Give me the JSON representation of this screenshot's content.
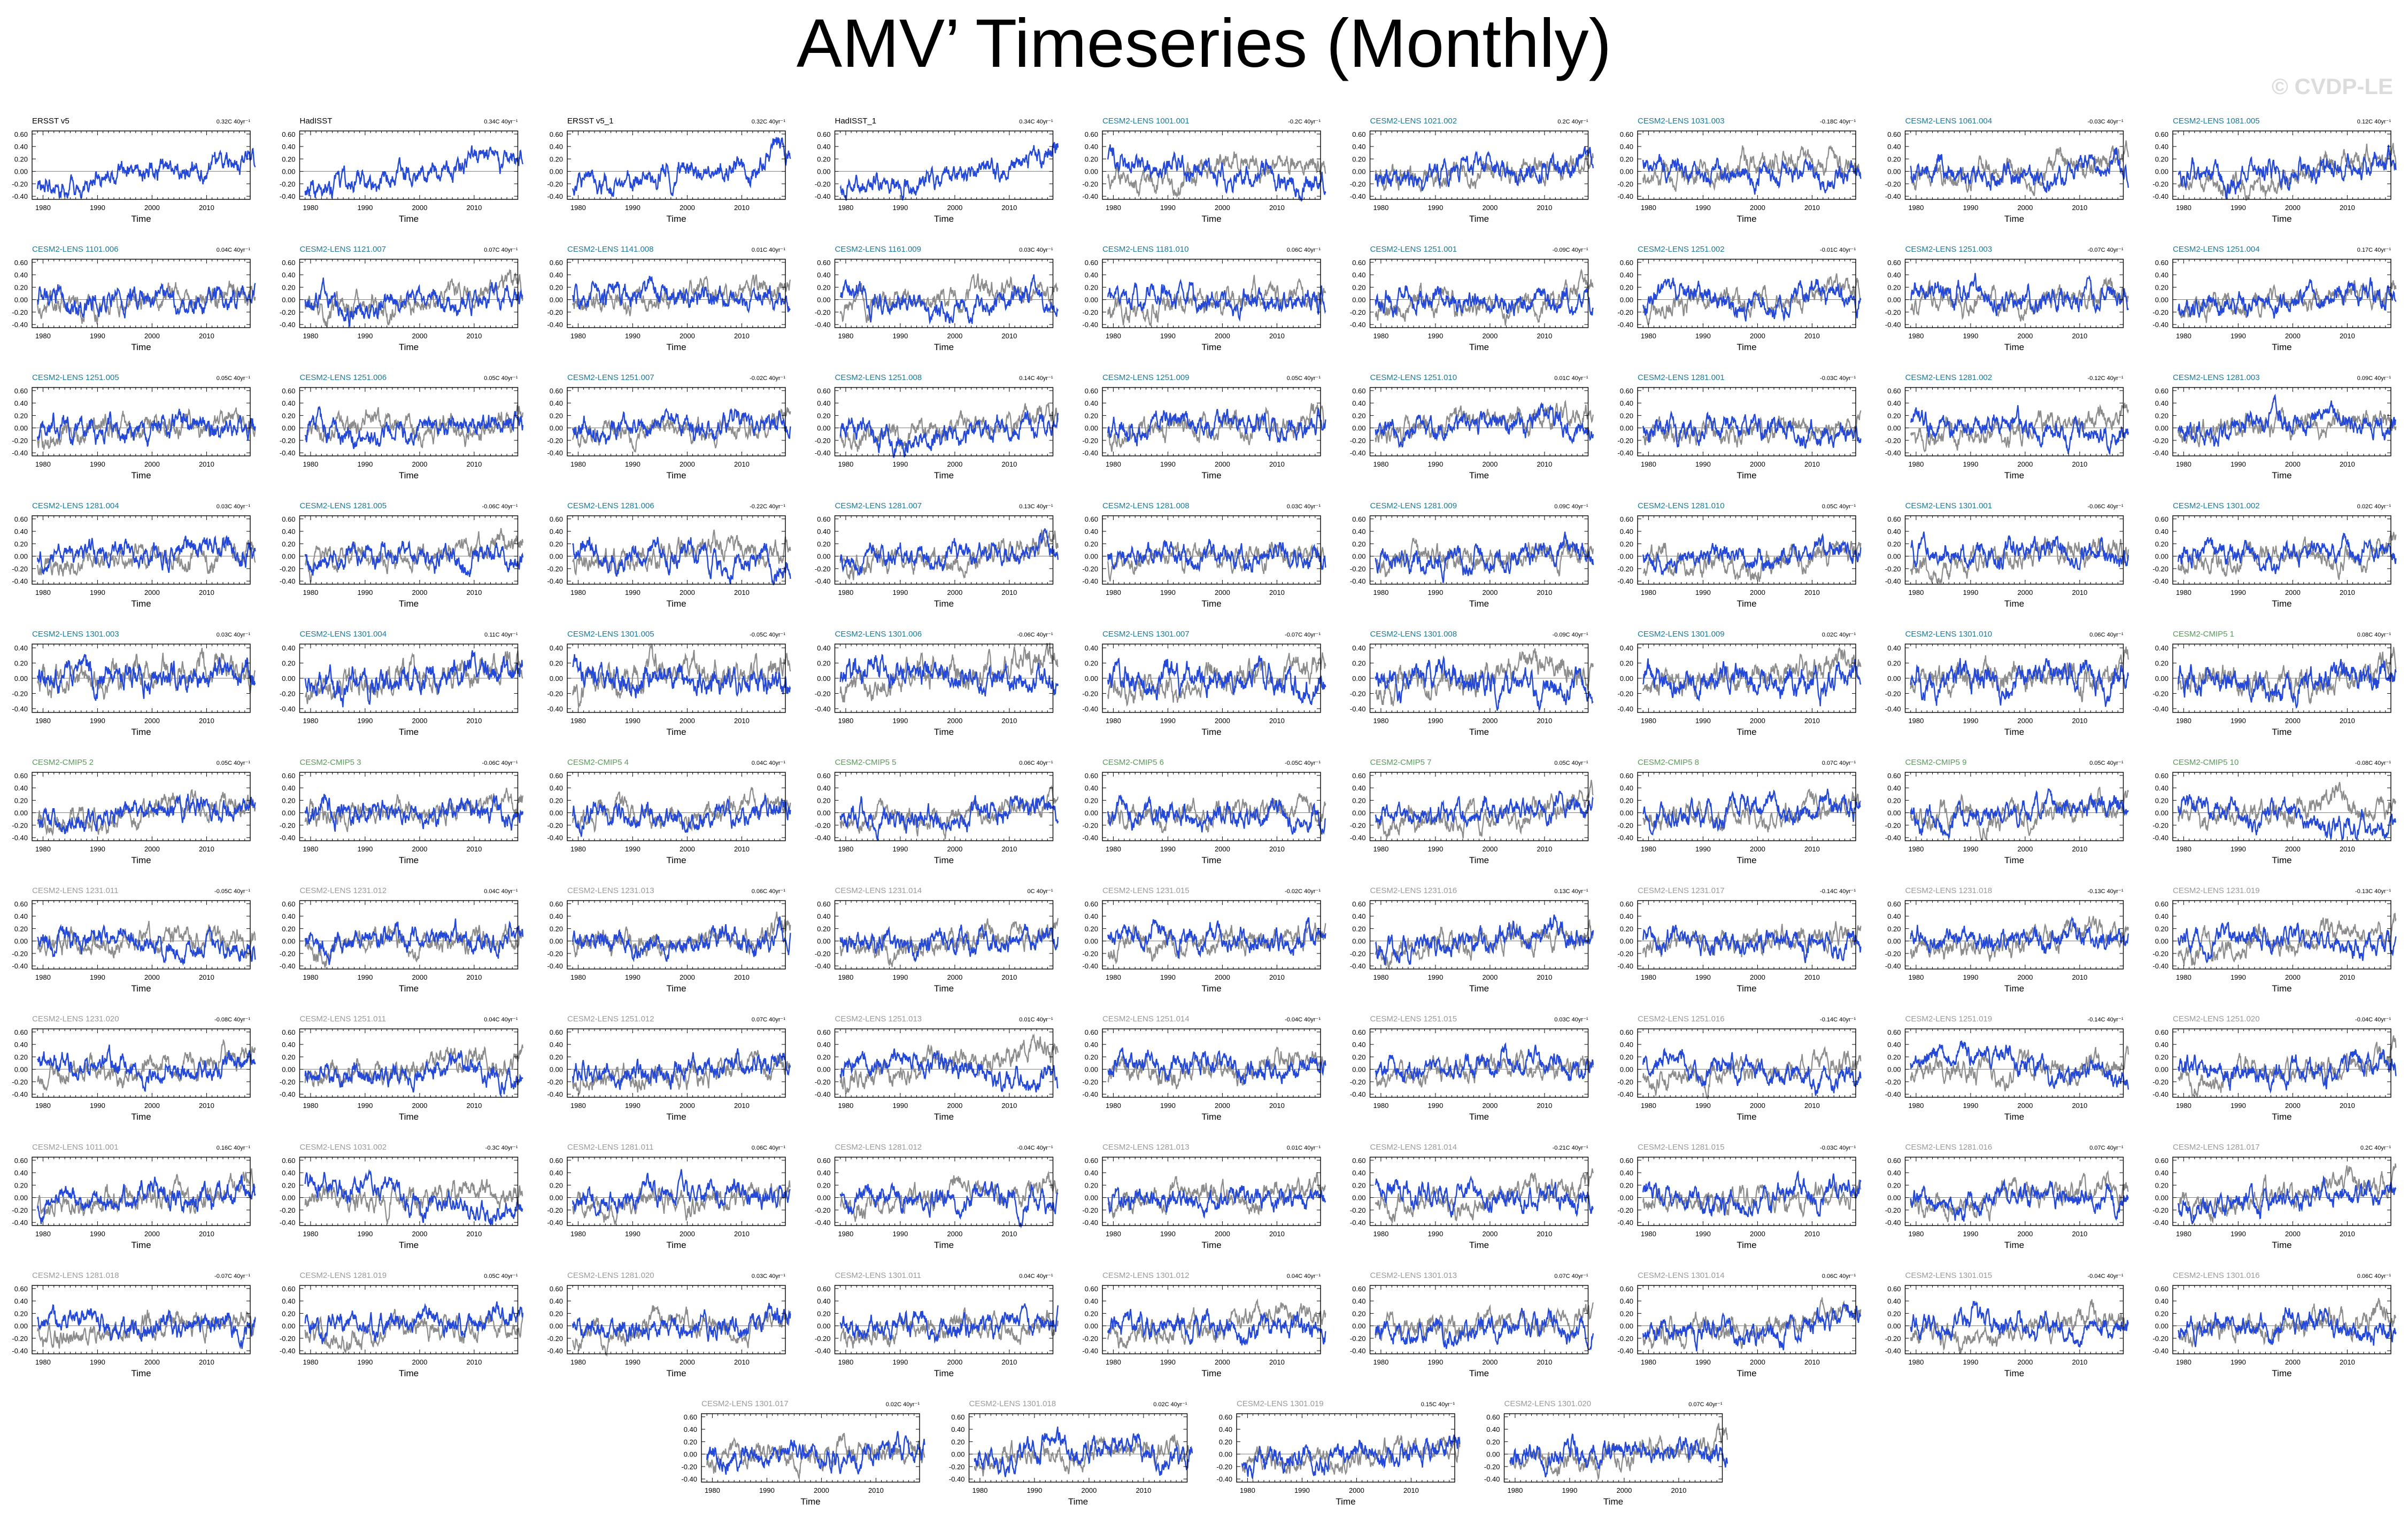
{
  "page": {
    "title": "AMV’ Timeseries (Monthly)",
    "watermark": "© CVDP-LE"
  },
  "colors": {
    "member_line": "#2448d8",
    "ensemble_line": "#8c8c8c",
    "obs_label": "#000000",
    "lens_label": "#1b7a99",
    "cmip5_label": "#5a9a5a",
    "other_label": "#9a9a9a"
  },
  "chart_data": {
    "type": "line",
    "xlabel": "Time",
    "x_range": [
      1978,
      2018
    ],
    "x_ticks": [
      1980,
      1990,
      2000,
      2010
    ],
    "rows": [
      [
        "ERSST v5",
        "HadISST",
        "ERSST v5_1",
        "HadISST_1",
        "CESM2-LENS 1001.001",
        "CESM2-LENS 1021.002",
        "CESM2-LENS 1031.003",
        "CESM2-LENS 1061.004",
        "CESM2-LENS 1081.005"
      ],
      [
        "CESM2-LENS 1101.006",
        "CESM2-LENS 1121.007",
        "CESM2-LENS 1141.008",
        "CESM2-LENS 1161.009",
        "CESM2-LENS 1181.010",
        "CESM2-LENS 1251.001",
        "CESM2-LENS 1251.002",
        "CESM2-LENS 1251.003",
        "CESM2-LENS 1251.004"
      ],
      [
        "CESM2-LENS 1251.005",
        "CESM2-LENS 1251.006",
        "CESM2-LENS 1251.007",
        "CESM2-LENS 1251.008",
        "CESM2-LENS 1251.009",
        "CESM2-LENS 1251.010",
        "CESM2-LENS 1281.001",
        "CESM2-LENS 1281.002",
        "CESM2-LENS 1281.003"
      ],
      [
        "CESM2-LENS 1281.004",
        "CESM2-LENS 1281.005",
        "CESM2-LENS 1281.006",
        "CESM2-LENS 1281.007",
        "CESM2-LENS 1281.008",
        "CESM2-LENS 1281.009",
        "CESM2-LENS 1281.010",
        "CESM2-LENS 1301.001",
        "CESM2-LENS 1301.002"
      ],
      [
        "CESM2-LENS 1301.003",
        "CESM2-LENS 1301.004",
        "CESM2-LENS 1301.005",
        "CESM2-LENS 1301.006",
        "CESM2-LENS 1301.007",
        "CESM2-LENS 1301.008",
        "CESM2-LENS 1301.009",
        "CESM2-LENS 1301.010",
        "CESM2-CMIP5 1"
      ],
      [
        "CESM2-CMIP5 2",
        "CESM2-CMIP5 3",
        "CESM2-CMIP5 4",
        "CESM2-CMIP5 5",
        "CESM2-CMIP5 6",
        "CESM2-CMIP5 7",
        "CESM2-CMIP5 8",
        "CESM2-CMIP5 9",
        "CESM2-CMIP5 10"
      ],
      [
        "CESM2-LENS 1231.011",
        "CESM2-LENS 1231.012",
        "CESM2-LENS 1231.013",
        "CESM2-LENS 1231.014",
        "CESM2-LENS 1231.015",
        "CESM2-LENS 1231.016",
        "CESM2-LENS 1231.017",
        "CESM2-LENS 1231.018",
        "CESM2-LENS 1231.019"
      ],
      [
        "CESM2-LENS 1231.020",
        "CESM2-LENS 1251.011",
        "CESM2-LENS 1251.012",
        "CESM2-LENS 1251.013",
        "CESM2-LENS 1251.014",
        "CESM2-LENS 1251.015",
        "CESM2-LENS 1251.016",
        "CESM2-LENS 1251.019",
        "CESM2-LENS 1251.020"
      ],
      [
        "CESM2-LENS 1011.001",
        "CESM2-LENS 1031.002",
        "CESM2-LENS 1281.011",
        "CESM2-LENS 1281.012",
        "CESM2-LENS 1281.013",
        "CESM2-LENS 1281.014",
        "CESM2-LENS 1281.015",
        "CESM2-LENS 1281.016",
        "CESM2-LENS 1281.017"
      ],
      [
        "CESM2-LENS 1281.018",
        "CESM2-LENS 1281.019",
        "CESM2-LENS 1281.020",
        "CESM2-LENS 1301.011",
        "CESM2-LENS 1301.012",
        "CESM2-LENS 1301.013",
        "CESM2-LENS 1301.014",
        "CESM2-LENS 1301.015",
        "CESM2-LENS 1301.016"
      ],
      [
        "CESM2-LENS 1301.017",
        "CESM2-LENS 1301.018",
        "CESM2-LENS 1301.019",
        "CESM2-LENS 1301.020"
      ]
    ],
    "trends": [
      [
        "0.32C 40yr⁻¹",
        "0.34C 40yr⁻¹",
        "0.32C 40yr⁻¹",
        "0.34C 40yr⁻¹",
        "-0.2C 40yr⁻¹",
        "0.2C 40yr⁻¹",
        "-0.18C 40yr⁻¹",
        "-0.03C 40yr⁻¹",
        "0.12C 40yr⁻¹"
      ],
      [
        "0.04C 40yr⁻¹",
        "0.07C 40yr⁻¹",
        "0.01C 40yr⁻¹",
        "0.03C 40yr⁻¹",
        "0.06C 40yr⁻¹",
        "-0.09C 40yr⁻¹",
        "-0.01C 40yr⁻¹",
        "-0.07C 40yr⁻¹",
        "0.17C 40yr⁻¹"
      ],
      [
        "0.05C 40yr⁻¹",
        "0.05C 40yr⁻¹",
        "-0.02C 40yr⁻¹",
        "0.14C 40yr⁻¹",
        "0.05C 40yr⁻¹",
        "0.01C 40yr⁻¹",
        "-0.03C 40yr⁻¹",
        "-0.12C 40yr⁻¹",
        "0.09C 40yr⁻¹"
      ],
      [
        "0.03C 40yr⁻¹",
        "-0.06C 40yr⁻¹",
        "-0.22C 40yr⁻¹",
        "0.13C 40yr⁻¹",
        "0.03C 40yr⁻¹",
        "0.09C 40yr⁻¹",
        "0.05C 40yr⁻¹",
        "-0.06C 40yr⁻¹",
        "0.02C 40yr⁻¹"
      ],
      [
        "0.03C 40yr⁻¹",
        "0.11C 40yr⁻¹",
        "-0.05C 40yr⁻¹",
        "-0.06C 40yr⁻¹",
        "-0.07C 40yr⁻¹",
        "-0.09C 40yr⁻¹",
        "0.02C 40yr⁻¹",
        "0.06C 40yr⁻¹",
        "0.08C 40yr⁻¹"
      ],
      [
        "0.05C 40yr⁻¹",
        "-0.06C 40yr⁻¹",
        "0.04C 40yr⁻¹",
        "0.06C 40yr⁻¹",
        "-0.05C 40yr⁻¹",
        "0.05C 40yr⁻¹",
        "0.07C 40yr⁻¹",
        "0.05C 40yr⁻¹",
        "-0.08C 40yr⁻¹"
      ],
      [
        "-0.05C 40yr⁻¹",
        "0.04C 40yr⁻¹",
        "0.06C 40yr⁻¹",
        "0C 40yr⁻¹",
        "-0.02C 40yr⁻¹",
        "0.13C 40yr⁻¹",
        "-0.14C 40yr⁻¹",
        "-0.13C 40yr⁻¹",
        "-0.13C 40yr⁻¹"
      ],
      [
        "-0.08C 40yr⁻¹",
        "0.04C 40yr⁻¹",
        "0.07C 40yr⁻¹",
        "0.01C 40yr⁻¹",
        "-0.04C 40yr⁻¹",
        "0.03C 40yr⁻¹",
        "-0.14C 40yr⁻¹",
        "-0.14C 40yr⁻¹",
        "-0.04C 40yr⁻¹"
      ],
      [
        "0.16C 40yr⁻¹",
        "-0.3C 40yr⁻¹",
        "0.06C 40yr⁻¹",
        "-0.04C 40yr⁻¹",
        "0.01C 40yr⁻¹",
        "-0.21C 40yr⁻¹",
        "-0.03C 40yr⁻¹",
        "0.07C 40yr⁻¹",
        "0.2C 40yr⁻¹"
      ],
      [
        "-0.07C 40yr⁻¹",
        "0.05C 40yr⁻¹",
        "0.03C 40yr⁻¹",
        "0.04C 40yr⁻¹",
        "0.04C 40yr⁻¹",
        "0.07C 40yr⁻¹",
        "0.06C 40yr⁻¹",
        "-0.04C 40yr⁻¹",
        "0.06C 40yr⁻¹"
      ],
      [
        "0.02C 40yr⁻¹",
        "0.02C 40yr⁻¹",
        "0.15C 40yr⁻¹",
        "0.07C 40yr⁻¹"
      ]
    ],
    "y_ticks_by_row": [
      [
        "0.60",
        "0.40",
        "0.20",
        "0.00",
        "-0.20",
        "-0.40"
      ],
      [
        "0.60",
        "0.40",
        "0.20",
        "0.00",
        "-0.20",
        "-0.40"
      ],
      [
        "0.60",
        "0.40",
        "0.20",
        "0.00",
        "-0.20",
        "-0.40"
      ],
      [
        "0.60",
        "0.40",
        "0.20",
        "0.00",
        "-0.20",
        "-0.40"
      ],
      [
        "0.40",
        "0.20",
        "0.00",
        "-0.20",
        "-0.40"
      ],
      [
        "0.60",
        "0.40",
        "0.20",
        "0.00",
        "-0.20",
        "-0.40"
      ],
      [
        "0.60",
        "0.40",
        "0.20",
        "0.00",
        "-0.20",
        "-0.40"
      ],
      [
        "0.60",
        "0.40",
        "0.20",
        "0.00",
        "-0.20",
        "-0.40"
      ],
      [
        "0.60",
        "0.40",
        "0.20",
        "0.00",
        "-0.20",
        "-0.40"
      ],
      [
        "0.60",
        "0.40",
        "0.20",
        "0.00",
        "-0.20",
        "-0.40"
      ],
      [
        "0.60",
        "0.40",
        "0.20",
        "0.00",
        "-0.20",
        "-0.40"
      ]
    ],
    "series_note": "per panel: blue = individual member / observation monthly AMV anomaly; gray = ensemble comparison series"
  }
}
